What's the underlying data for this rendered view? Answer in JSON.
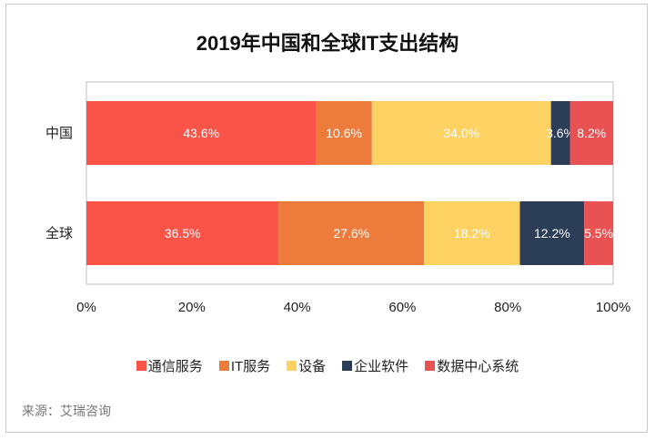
{
  "chart_data": {
    "type": "bar",
    "orientation": "horizontal",
    "stacked": "percent",
    "title": "2019年中国和全球IT支出结构",
    "categories": [
      "中国",
      "全球"
    ],
    "series": [
      {
        "name": "通信服务",
        "color": "#fa5348",
        "values": [
          43.6,
          36.5
        ]
      },
      {
        "name": "IT服务",
        "color": "#ed7c3c",
        "values": [
          10.6,
          27.6
        ]
      },
      {
        "name": "设备",
        "color": "#fdd262",
        "values": [
          34.0,
          18.2
        ]
      },
      {
        "name": "企业软件",
        "color": "#2b3d57",
        "values": [
          3.6,
          12.2
        ]
      },
      {
        "name": "数据中心系统",
        "color": "#e95252",
        "values": [
          8.2,
          5.5
        ]
      }
    ],
    "data_labels": [
      [
        "43.6%",
        "10.6%",
        "34.0%",
        "3.6%",
        "8.2%"
      ],
      [
        "36.5%",
        "27.6%",
        "18.2%",
        "12.2%",
        "5.5%"
      ]
    ],
    "xlim": [
      0,
      100
    ],
    "xticks": [
      "0%",
      "20%",
      "40%",
      "60%",
      "80%",
      "100%"
    ],
    "grid": false,
    "legend": "bottom"
  },
  "source": "来源：艾瑞咨询"
}
